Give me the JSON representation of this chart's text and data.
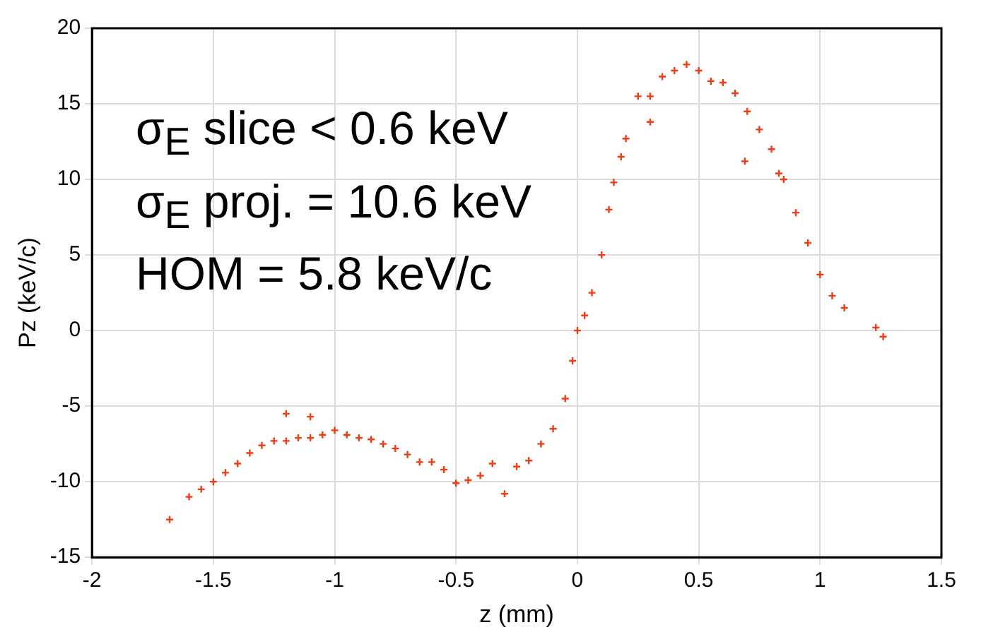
{
  "chart_data": {
    "type": "scatter",
    "xlabel": "z (mm)",
    "ylabel": "Pz (keV/c)",
    "annotations": [
      "σ$_{E}$ slice < 0.6 keV",
      "σ$_{E}$ proj. = 10.6 keV",
      "HOM = 5.8 keV/c"
    ],
    "series": [
      {
        "color": "#f03c14",
        "x": [
          -1.68,
          -1.6,
          -1.55,
          -1.5,
          -1.45,
          -1.4,
          -1.35,
          -1.3,
          -1.25,
          -1.2,
          -1.15,
          -1.1,
          -1.05,
          -1.0,
          -0.95,
          -0.9,
          -0.85,
          -0.8,
          -0.75,
          -0.7,
          -0.65,
          -0.6,
          -0.55,
          -0.5,
          -0.45,
          -0.4,
          -0.35,
          -0.3,
          -0.25,
          -0.2,
          -0.15,
          -0.1,
          -0.05,
          -0.02,
          0,
          0.03,
          0.06,
          0.1,
          0.13,
          0.15,
          0.18,
          0.2,
          0.25,
          0.3,
          0.35,
          0.4,
          0.45,
          0.5,
          0.55,
          0.6,
          0.65,
          0.7,
          0.75,
          0.8,
          0.85,
          0.9,
          0.95,
          1.0,
          1.05,
          1.1,
          1.23,
          1.26,
          -1.2,
          -1.1,
          0.3,
          0.69,
          0.83
        ],
        "values": [
          -12.5,
          -11,
          -10.5,
          -10,
          -9.4,
          -8.8,
          -8.1,
          -7.6,
          -7.3,
          -7.3,
          -7.1,
          -7.1,
          -6.9,
          -6.6,
          -6.9,
          -7.1,
          -7.2,
          -7.5,
          -7.8,
          -8.2,
          -8.7,
          -8.7,
          -9.2,
          -10.1,
          -9.9,
          -9.6,
          -8.8,
          -10.8,
          -9.0,
          -8.6,
          -7.5,
          -6.5,
          -4.5,
          -2,
          0,
          1,
          2.5,
          5,
          8,
          9.8,
          11.5,
          12.7,
          15.5,
          15.5,
          16.8,
          17.2,
          17.6,
          17.2,
          16.5,
          16.4,
          15.7,
          14.5,
          13.3,
          12.0,
          10,
          7.8,
          5.8,
          3.7,
          2.3,
          1.5,
          0.2,
          -0.4,
          -5.5,
          -5.7,
          13.8,
          11.2,
          10.4
        ]
      }
    ],
    "xlim": [
      -2,
      1.5
    ],
    "xticks": [
      -2,
      -1.5,
      -1,
      -0.5,
      0,
      0.5,
      1,
      1.5
    ],
    "ylim": [
      -15,
      20
    ],
    "yticks": [
      -15,
      -10,
      -5,
      0,
      5,
      10,
      15,
      20
    ],
    "grid": true,
    "marker": "cross"
  }
}
